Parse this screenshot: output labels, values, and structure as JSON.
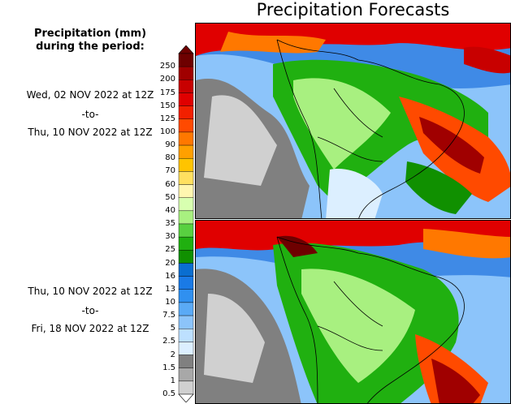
{
  "title": "Precipitation Forecasts",
  "legend": {
    "heading_line1": "Precipitation (mm)",
    "heading_line2": "during the period:",
    "ticks": [
      "250",
      "200",
      "175",
      "150",
      "125",
      "100",
      "90",
      "80",
      "70",
      "60",
      "50",
      "40",
      "35",
      "30",
      "25",
      "20",
      "16",
      "13",
      "10",
      "7.5",
      "5",
      "2.5",
      "2",
      "1.5",
      "1",
      "0.5"
    ],
    "colors": [
      "#6e0000",
      "#a00000",
      "#c80000",
      "#e00000",
      "#f22000",
      "#ff4a00",
      "#ff7800",
      "#ffa000",
      "#ffc400",
      "#ffe060",
      "#fff6b0",
      "#d8ffb0",
      "#a8f080",
      "#58d040",
      "#20b010",
      "#109000",
      "#0a6ed0",
      "#1a7ae6",
      "#3090f0",
      "#5aaaf6",
      "#8cc4fa",
      "#bde0ff",
      "#dcefff",
      "#808080",
      "#a8a8a8",
      "#d0d0d0"
    ]
  },
  "period1": {
    "start": "Wed, 02 NOV 2022 at 12Z",
    "sep": "-to-",
    "end": "Thu, 10 NOV 2022 at 12Z"
  },
  "period2": {
    "start": "Thu, 10 NOV 2022 at 12Z",
    "sep": "-to-",
    "end": "Fri, 18 NOV 2022 at 12Z"
  }
}
